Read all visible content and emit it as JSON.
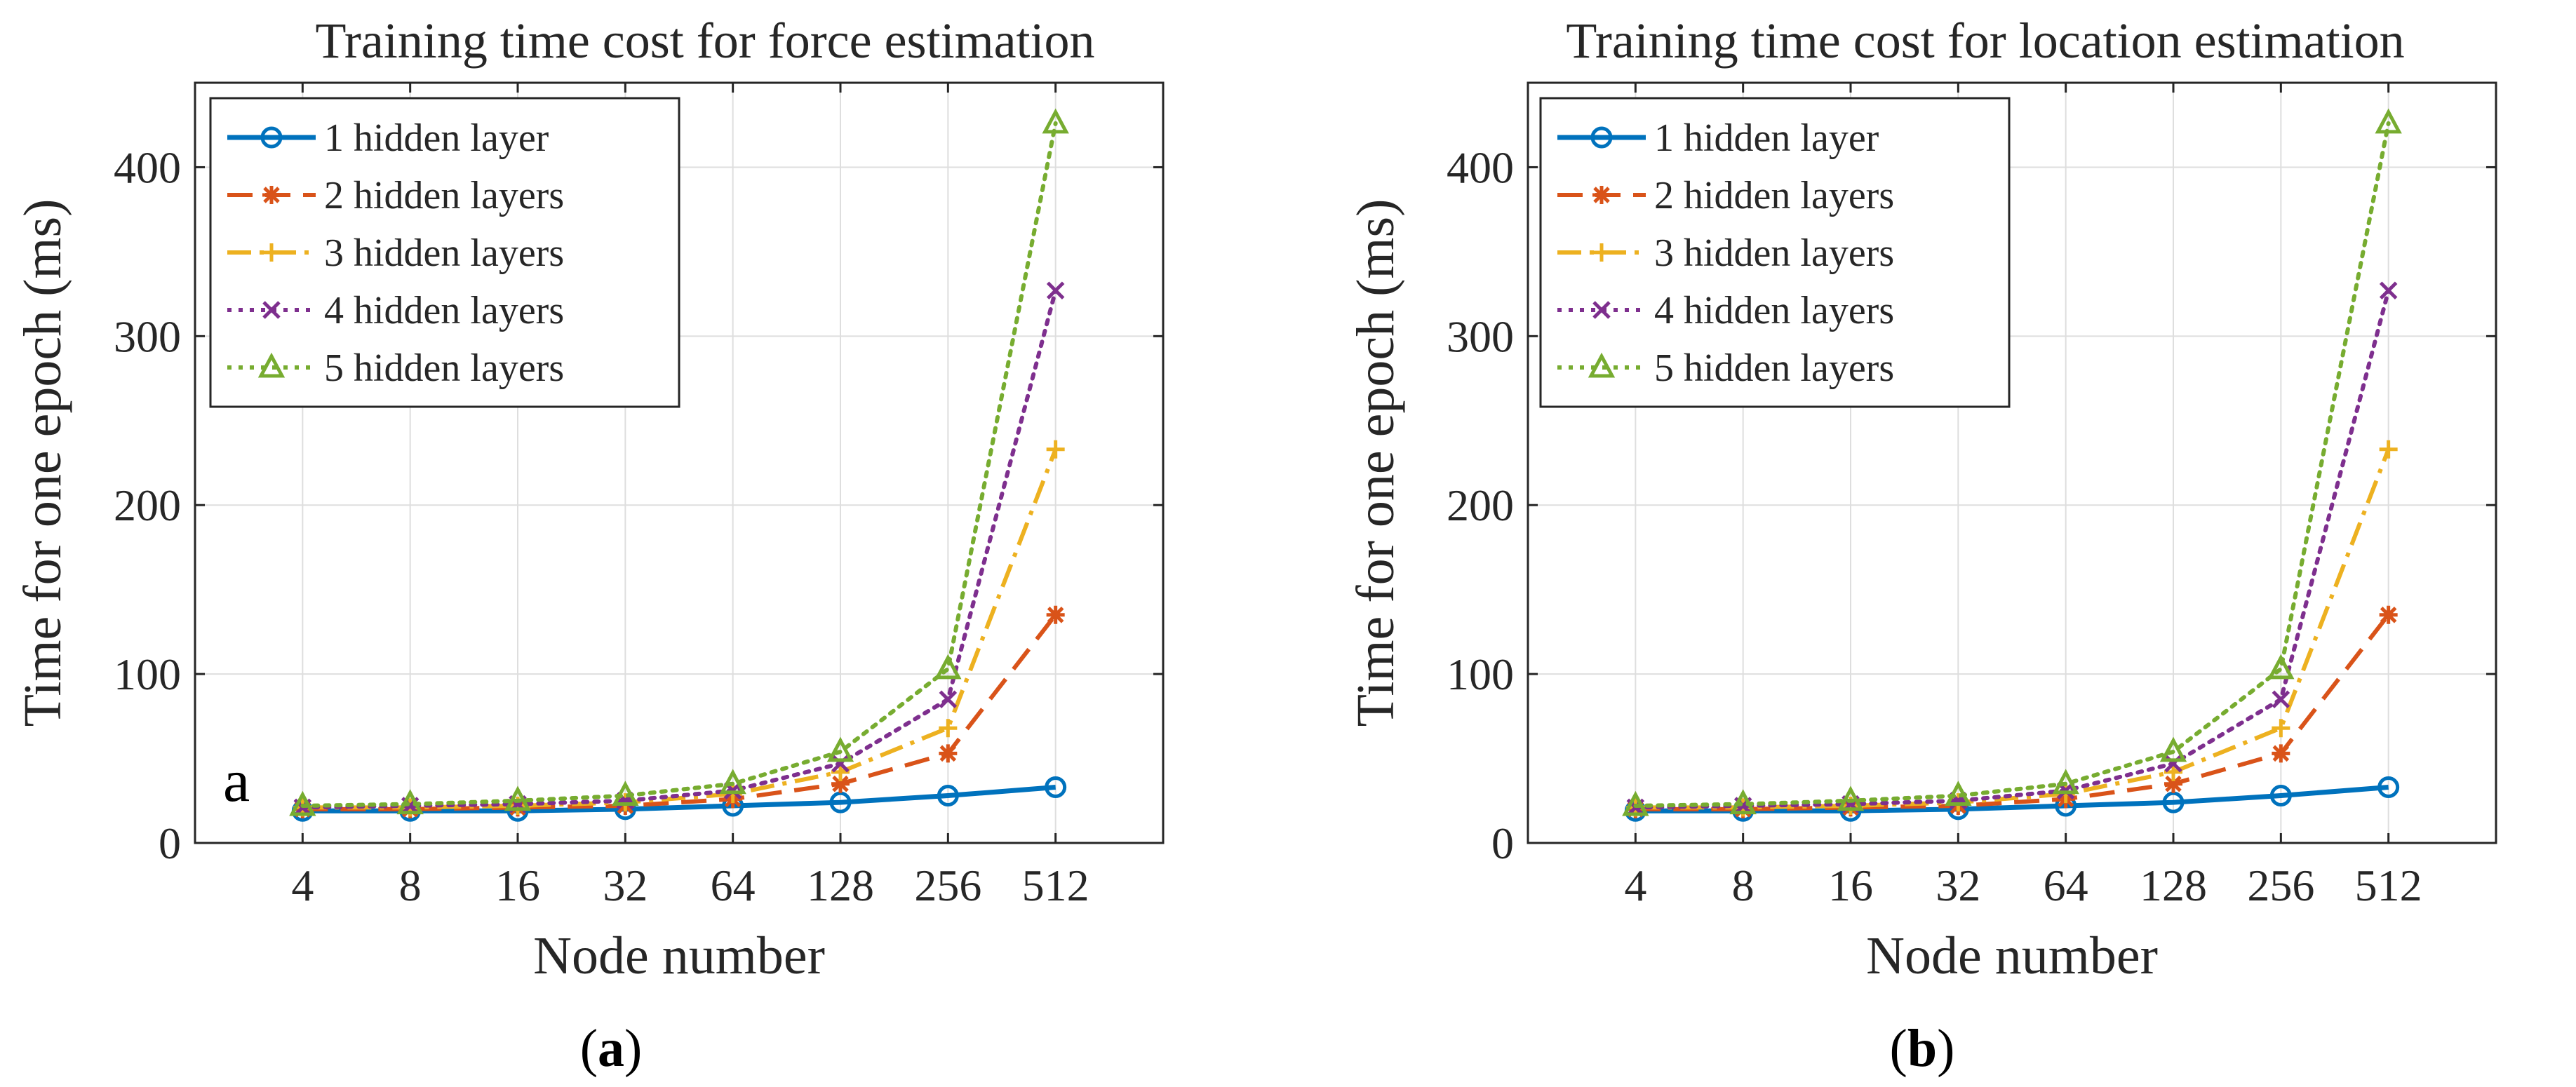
{
  "chart_data": [
    {
      "type": "line",
      "title": "Training time cost for force estimation",
      "xlabel": "Node number",
      "ylabel": "Time for one epoch (ms)",
      "categories": [
        "4",
        "8",
        "16",
        "32",
        "64",
        "128",
        "256",
        "512"
      ],
      "yticks": [
        "0",
        "100",
        "200",
        "300",
        "400"
      ],
      "ylim": [
        0,
        450
      ],
      "grid": true,
      "legend_position": "top-left",
      "panel_letter": "a",
      "caption_open": "(",
      "caption_letter": "a",
      "caption_close": ")",
      "series": [
        {
          "name": "1 hidden layer",
          "color": "#0072BD",
          "dash": "solid",
          "marker": "circle",
          "values": [
            19,
            19,
            19,
            20,
            22,
            24,
            28,
            33
          ]
        },
        {
          "name": "2 hidden layers",
          "color": "#D95319",
          "dash": "dashed",
          "marker": "asterisk",
          "values": [
            20,
            20,
            21,
            22,
            26,
            35,
            53,
            135
          ]
        },
        {
          "name": "3 hidden layers",
          "color": "#EDB120",
          "dash": "dashdot",
          "marker": "plus",
          "values": [
            21,
            21,
            22,
            24,
            29,
            42,
            68,
            233
          ]
        },
        {
          "name": "4 hidden layers",
          "color": "#7E2F8E",
          "dash": "dotted",
          "marker": "x",
          "values": [
            21,
            22,
            23,
            25,
            31,
            47,
            85,
            327
          ]
        },
        {
          "name": "5 hidden layers",
          "color": "#77AC30",
          "dash": "dotted",
          "marker": "triangle",
          "values": [
            22,
            23,
            25,
            28,
            35,
            54,
            103,
            426
          ]
        }
      ]
    },
    {
      "type": "line",
      "title": "Training time cost for location estimation",
      "xlabel": "Node number",
      "ylabel": "Time for one epoch (ms)",
      "categories": [
        "4",
        "8",
        "16",
        "32",
        "64",
        "128",
        "256",
        "512"
      ],
      "yticks": [
        "0",
        "100",
        "200",
        "300",
        "400"
      ],
      "ylim": [
        0,
        450
      ],
      "grid": true,
      "legend_position": "top-left",
      "panel_letter": "",
      "caption_open": "(",
      "caption_letter": "b",
      "caption_close": ")",
      "series": [
        {
          "name": "1 hidden layer",
          "color": "#0072BD",
          "dash": "solid",
          "marker": "circle",
          "values": [
            19,
            19,
            19,
            20,
            22,
            24,
            28,
            33
          ]
        },
        {
          "name": "2 hidden layers",
          "color": "#D95319",
          "dash": "dashed",
          "marker": "asterisk",
          "values": [
            20,
            20,
            21,
            22,
            26,
            35,
            53,
            135
          ]
        },
        {
          "name": "3 hidden layers",
          "color": "#EDB120",
          "dash": "dashdot",
          "marker": "plus",
          "values": [
            21,
            21,
            22,
            24,
            29,
            42,
            68,
            233
          ]
        },
        {
          "name": "4 hidden layers",
          "color": "#7E2F8E",
          "dash": "dotted",
          "marker": "x",
          "values": [
            21,
            22,
            23,
            25,
            31,
            47,
            85,
            327
          ]
        },
        {
          "name": "5 hidden layers",
          "color": "#77AC30",
          "dash": "dotted",
          "marker": "triangle",
          "values": [
            22,
            23,
            25,
            28,
            35,
            54,
            103,
            426
          ]
        }
      ]
    }
  ]
}
